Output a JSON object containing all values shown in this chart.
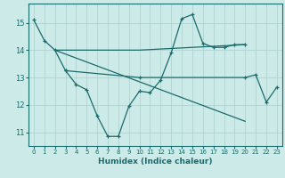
{
  "xlabel": "Humidex (Indice chaleur)",
  "xlim": [
    -0.5,
    23.5
  ],
  "ylim": [
    10.5,
    15.7
  ],
  "yticks": [
    11,
    12,
    13,
    14,
    15
  ],
  "xticks": [
    0,
    1,
    2,
    3,
    4,
    5,
    6,
    7,
    8,
    9,
    10,
    11,
    12,
    13,
    14,
    15,
    16,
    17,
    18,
    19,
    20,
    21,
    22,
    23
  ],
  "bg_color": "#cceae8",
  "line_color": "#1a6b6b",
  "grid_color": "#aacfce",
  "lines": [
    {
      "x": [
        0,
        1,
        2,
        3,
        4,
        5,
        6,
        7,
        8,
        9,
        10,
        11,
        12,
        13,
        14,
        15,
        16,
        17,
        18,
        19,
        20
      ],
      "y": [
        15.1,
        14.35,
        14.0,
        13.25,
        12.75,
        12.55,
        11.6,
        10.85,
        10.85,
        11.95,
        12.5,
        12.45,
        12.9,
        13.9,
        15.15,
        15.3,
        14.25,
        14.1,
        14.1,
        14.2,
        14.2
      ],
      "marker": true
    },
    {
      "x": [
        2,
        10,
        20
      ],
      "y": [
        14.0,
        14.0,
        14.2
      ],
      "marker": false
    },
    {
      "x": [
        3,
        10,
        20,
        21,
        22,
        23
      ],
      "y": [
        13.25,
        13.0,
        13.0,
        13.1,
        12.1,
        12.65
      ],
      "marker": true
    },
    {
      "x": [
        2,
        20
      ],
      "y": [
        14.0,
        11.4
      ],
      "marker": false
    }
  ]
}
